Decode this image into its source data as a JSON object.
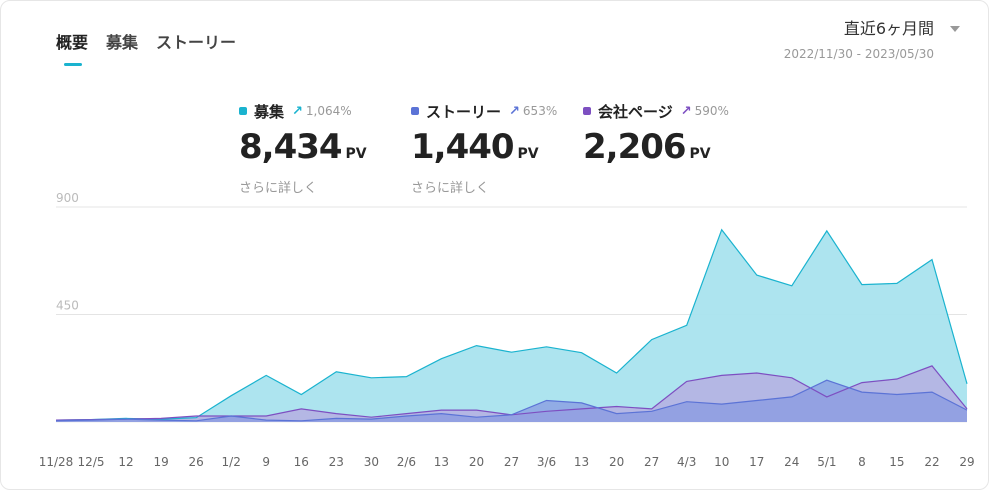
{
  "tabs": [
    {
      "label": "概要"
    },
    {
      "label": "募集"
    },
    {
      "label": "ストーリー"
    }
  ],
  "range": {
    "label": "直近6ヶ月間",
    "dates": "2022/11/30 - 2023/05/30"
  },
  "stats": [
    {
      "name": "募集",
      "trend_pct": "1,064%",
      "value": "8,434",
      "unit": "PV",
      "more": "さらに詳しく",
      "color": "#1ab3cf"
    },
    {
      "name": "ストーリー",
      "trend_pct": "653%",
      "value": "1,440",
      "unit": "PV",
      "more": "さらに詳しく",
      "color": "#5b73d6"
    },
    {
      "name": "会社ページ",
      "trend_pct": "590%",
      "value": "2,206",
      "unit": "PV",
      "more": "",
      "color": "#7d4fc1"
    }
  ],
  "chart_data": {
    "type": "area",
    "x": [
      "11/28",
      "12/5",
      "12",
      "19",
      "26",
      "1/2",
      "9",
      "16",
      "23",
      "30",
      "2/6",
      "13",
      "20",
      "27",
      "3/6",
      "13",
      "20",
      "27",
      "4/3",
      "10",
      "17",
      "24",
      "5/1",
      "8",
      "15",
      "22",
      "29"
    ],
    "y_ticks": [
      "900",
      "450"
    ],
    "ylim": [
      0,
      900
    ],
    "series": [
      {
        "name": "募集",
        "color": "#1ab3cf",
        "fill": "#a9e3ee",
        "values": [
          8,
          10,
          15,
          12,
          18,
          110,
          195,
          115,
          210,
          185,
          190,
          265,
          320,
          292,
          315,
          290,
          205,
          345,
          405,
          805,
          615,
          570,
          800,
          575,
          580,
          680,
          160
        ]
      },
      {
        "name": "会社ページ",
        "color": "#7d4fc1",
        "fill": "#b7a8e0",
        "values": [
          8,
          10,
          12,
          15,
          25,
          25,
          25,
          55,
          35,
          20,
          35,
          50,
          50,
          30,
          45,
          55,
          65,
          55,
          170,
          195,
          205,
          185,
          105,
          165,
          180,
          235,
          55
        ]
      },
      {
        "name": "ストーリー",
        "color": "#5b73d6",
        "fill": "#8899e2",
        "values": [
          5,
          8,
          12,
          8,
          5,
          25,
          8,
          5,
          15,
          12,
          25,
          35,
          20,
          30,
          90,
          80,
          35,
          45,
          85,
          75,
          90,
          105,
          175,
          125,
          115,
          125,
          50
        ]
      }
    ]
  }
}
